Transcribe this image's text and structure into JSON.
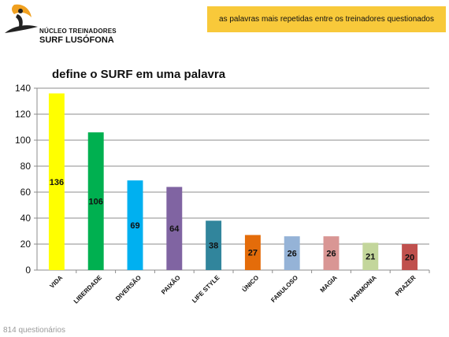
{
  "header": {
    "logo_line1": "NÚCLEO TREINADORES",
    "logo_line2": "SURF LUSÓFONA",
    "banner_text": "as palavras mais repetidas entre os treinadores questionados"
  },
  "footer": {
    "note": "814 questionários"
  },
  "colors": {
    "banner": "#f8c93a",
    "bars": [
      "#ffff00",
      "#00b050",
      "#00b0f0",
      "#8064a2",
      "#31859c",
      "#e46c0a",
      "#95b3d7",
      "#d99694",
      "#c3d69b",
      "#c0504d"
    ]
  },
  "chart_data": {
    "type": "bar",
    "title": "define o SURF em uma palavra",
    "categories": [
      "VIDA",
      "LIBERDADE",
      "DIVERSÃO",
      "PAIXÃO",
      "LIFE STYLE",
      "ÚNICO",
      "FABULOSO",
      "MAGIA",
      "HARMONIA",
      "PRAZER"
    ],
    "values": [
      136,
      106,
      69,
      64,
      38,
      27,
      26,
      26,
      21,
      20
    ],
    "ylim": [
      0,
      140
    ],
    "yticks": [
      0,
      20,
      40,
      60,
      80,
      100,
      120,
      140
    ],
    "grid": true,
    "legend": "none"
  }
}
